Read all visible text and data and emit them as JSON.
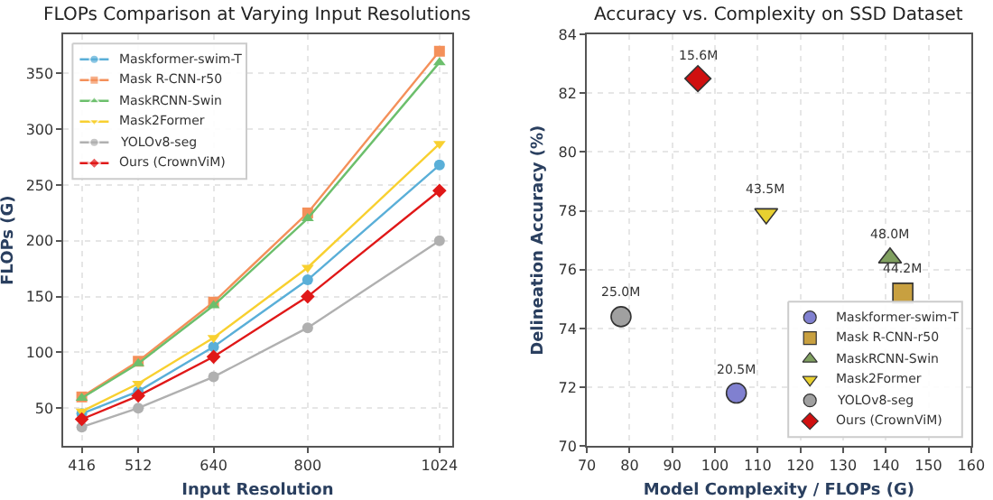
{
  "chart_data": [
    {
      "type": "line",
      "title": "FLOPs Comparison at Varying Input Resolutions",
      "xlabel": "Input Resolution",
      "ylabel": "FLOPs (G)",
      "x": [
        416,
        512,
        640,
        800,
        1024
      ],
      "xlim": [
        385,
        1045
      ],
      "xticks": [
        416,
        512,
        640,
        800,
        1024
      ],
      "ylim": [
        16,
        385
      ],
      "yticks": [
        50,
        100,
        150,
        200,
        250,
        300,
        350
      ],
      "grid": true,
      "legend": "top left",
      "line_style": "solid",
      "series": [
        {
          "name": "Maskformer-swim-T",
          "color": "#5aafd8",
          "marker": "circle",
          "values": [
            45,
            65,
            105,
            165,
            268
          ]
        },
        {
          "name": "Mask R-CNN-r50",
          "color": "#f4905a",
          "marker": "square",
          "values": [
            60,
            92,
            145,
            225,
            370
          ]
        },
        {
          "name": "MaskRCNN-Swin",
          "color": "#6cbf6c",
          "marker": "triangle",
          "values": [
            59,
            90,
            142,
            220,
            360
          ]
        },
        {
          "name": "Mask2Former",
          "color": "#f8d030",
          "marker": "triangle-down",
          "values": [
            47,
            72,
            113,
            176,
            287
          ]
        },
        {
          "name": "YOLOv8-seg",
          "color": "#b0b0b0",
          "marker": "circle",
          "values": [
            33,
            50,
            78,
            122,
            200
          ]
        },
        {
          "name": "Ours (CrownViM)",
          "color": "#e01818",
          "marker": "diamond",
          "values": [
            40,
            61,
            96,
            150,
            245
          ]
        }
      ]
    },
    {
      "type": "scatter",
      "title": "Accuracy vs. Complexity on SSD Dataset",
      "xlabel": "Model Complexity / FLOPs (G)",
      "ylabel": "Delineation Accuracy (%)",
      "xlim": [
        70,
        160
      ],
      "xticks": [
        70,
        80,
        90,
        100,
        110,
        120,
        130,
        140,
        150,
        160
      ],
      "ylim": [
        70,
        84
      ],
      "yticks": [
        70,
        72,
        74,
        76,
        78,
        80,
        82,
        84
      ],
      "grid": true,
      "legend": "bottom right",
      "annotations": [
        {
          "text": "20.5M",
          "x": 105,
          "y": 71.8
        },
        {
          "text": "44.2M",
          "x": 144,
          "y": 75.2
        },
        {
          "text": "48.0M",
          "x": 141,
          "y": 76.4
        },
        {
          "text": "43.5M",
          "x": 112,
          "y": 77.9
        },
        {
          "text": "25.0M",
          "x": 78,
          "y": 74.4
        },
        {
          "text": "15.6M",
          "x": 96,
          "y": 82.5
        }
      ],
      "series": [
        {
          "name": "Maskformer-swim-T",
          "color": "#8080d0",
          "marker": "circle",
          "x": [
            105
          ],
          "values": [
            71.8
          ]
        },
        {
          "name": "Mask R-CNN-r50",
          "color": "#c8a040",
          "marker": "square",
          "x": [
            144
          ],
          "values": [
            75.2
          ]
        },
        {
          "name": "MaskRCNN-Swin",
          "color": "#80a060",
          "marker": "triangle",
          "x": [
            141
          ],
          "values": [
            76.4
          ]
        },
        {
          "name": "Mask2Former",
          "color": "#e8d030",
          "marker": "triangle-down",
          "x": [
            112
          ],
          "values": [
            77.9
          ]
        },
        {
          "name": "YOLOv8-seg",
          "color": "#a0a0a0",
          "marker": "circle",
          "x": [
            78
          ],
          "values": [
            74.4
          ]
        },
        {
          "name": "Ours (CrownViM)",
          "color": "#d01010",
          "marker": "diamond",
          "x": [
            96
          ],
          "values": [
            82.5
          ]
        }
      ]
    }
  ]
}
